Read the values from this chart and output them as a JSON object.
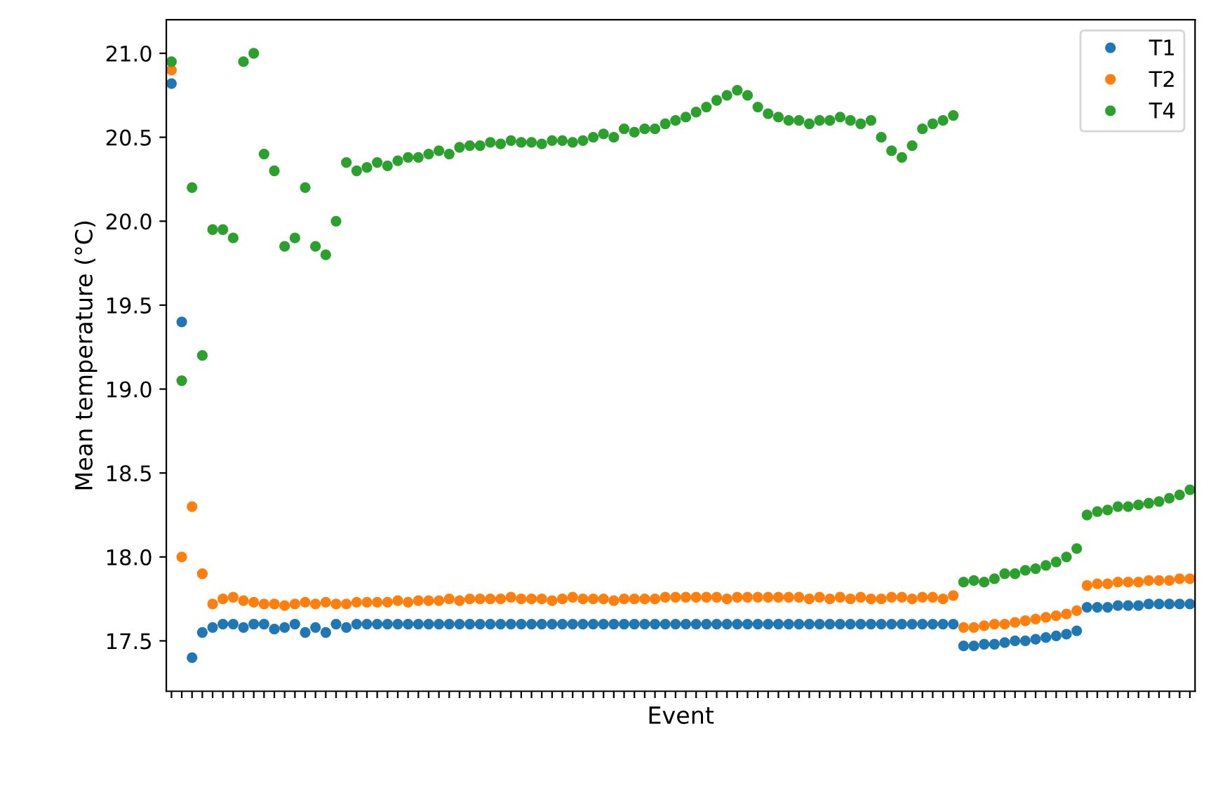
{
  "chart_data": {
    "type": "scatter",
    "xlabel": "Event",
    "ylabel": "Mean temperature (°C)",
    "categories": [
      null,
      null,
      null,
      null,
      null,
      null,
      null,
      null,
      null,
      null,
      null,
      null,
      null,
      null,
      null,
      null,
      null,
      null,
      null,
      null,
      null,
      null,
      null,
      null,
      null,
      null,
      null,
      null,
      null,
      null,
      null,
      null,
      null,
      null,
      null,
      null,
      null,
      null,
      null,
      null,
      null,
      null,
      null,
      null,
      null,
      null,
      null,
      null,
      null,
      null,
      null,
      null,
      null,
      null,
      null,
      null,
      null,
      null,
      null,
      null,
      null,
      null,
      null,
      null,
      null,
      null,
      null,
      null,
      null,
      null,
      null,
      null,
      null,
      null,
      null,
      null,
      null,
      null,
      null,
      null,
      null,
      null,
      null,
      null,
      null,
      null,
      null,
      null,
      null,
      null,
      null,
      null,
      null,
      null,
      null,
      null,
      null,
      null,
      null,
      null
    ],
    "ylim": [
      17.2,
      21.2
    ],
    "yticks": [
      17.5,
      {
        "value": 18,
        "label": "18.0"
      },
      18.5,
      {
        "value": 19,
        "label": "19.0"
      },
      19.5,
      {
        "value": 20,
        "label": "20.0"
      },
      20.5,
      {
        "value": 21,
        "label": "21.0"
      }
    ],
    "tick_labels": "y",
    "legend": "top right",
    "marker": "circle",
    "grid": false,
    "series": [
      {
        "name": "T1",
        "color": "#1f77b4",
        "values": [
          20.82,
          19.4,
          17.4,
          17.55,
          17.58,
          17.6,
          17.6,
          17.58,
          17.6,
          17.6,
          17.57,
          17.58,
          17.6,
          17.55,
          17.58,
          17.55,
          17.6,
          17.58,
          17.6,
          17.6,
          17.6,
          17.6,
          17.6,
          17.6,
          17.6,
          17.6,
          17.6,
          17.6,
          17.6,
          17.6,
          17.6,
          17.6,
          17.6,
          17.6,
          17.6,
          17.6,
          17.6,
          17.6,
          17.6,
          17.6,
          17.6,
          17.6,
          17.6,
          17.6,
          17.6,
          17.6,
          17.6,
          17.6,
          17.6,
          17.6,
          17.6,
          17.6,
          17.6,
          17.6,
          17.6,
          17.6,
          17.6,
          17.6,
          17.6,
          17.6,
          17.6,
          17.6,
          17.6,
          17.6,
          17.6,
          17.6,
          17.6,
          17.6,
          17.6,
          17.6,
          17.6,
          17.6,
          17.6,
          17.6,
          17.6,
          17.6,
          17.6,
          17.47,
          17.47,
          17.48,
          17.48,
          17.49,
          17.5,
          17.5,
          17.51,
          17.52,
          17.53,
          17.54,
          17.56,
          17.7,
          17.7,
          17.7,
          17.71,
          17.71,
          17.71,
          17.72,
          17.72,
          17.72,
          17.72,
          17.72
        ]
      },
      {
        "name": "T2",
        "color": "#ff7f0e",
        "values": [
          20.9,
          18.0,
          18.3,
          17.9,
          17.72,
          17.75,
          17.76,
          17.74,
          17.73,
          17.72,
          17.72,
          17.71,
          17.72,
          17.73,
          17.72,
          17.73,
          17.72,
          17.72,
          17.73,
          17.73,
          17.73,
          17.73,
          17.74,
          17.73,
          17.74,
          17.74,
          17.74,
          17.75,
          17.74,
          17.75,
          17.75,
          17.75,
          17.75,
          17.76,
          17.75,
          17.75,
          17.75,
          17.74,
          17.75,
          17.76,
          17.75,
          17.75,
          17.75,
          17.74,
          17.75,
          17.75,
          17.75,
          17.75,
          17.76,
          17.76,
          17.76,
          17.76,
          17.76,
          17.76,
          17.75,
          17.76,
          17.76,
          17.76,
          17.76,
          17.76,
          17.76,
          17.76,
          17.75,
          17.76,
          17.75,
          17.76,
          17.75,
          17.76,
          17.75,
          17.75,
          17.76,
          17.76,
          17.75,
          17.76,
          17.76,
          17.75,
          17.77,
          17.58,
          17.58,
          17.59,
          17.6,
          17.6,
          17.61,
          17.62,
          17.63,
          17.64,
          17.65,
          17.66,
          17.68,
          17.83,
          17.84,
          17.84,
          17.85,
          17.85,
          17.85,
          17.86,
          17.86,
          17.86,
          17.87,
          17.87
        ]
      },
      {
        "name": "T4",
        "color": "#2ca02c",
        "values": [
          20.95,
          19.05,
          20.2,
          19.2,
          19.95,
          19.95,
          19.9,
          20.95,
          21.0,
          20.4,
          20.3,
          19.85,
          19.9,
          20.2,
          19.85,
          19.8,
          20.0,
          20.35,
          20.3,
          20.32,
          20.35,
          20.33,
          20.36,
          20.38,
          20.38,
          20.4,
          20.42,
          20.4,
          20.44,
          20.45,
          20.45,
          20.47,
          20.46,
          20.48,
          20.47,
          20.47,
          20.46,
          20.48,
          20.48,
          20.47,
          20.48,
          20.5,
          20.52,
          20.5,
          20.55,
          20.53,
          20.55,
          20.55,
          20.58,
          20.6,
          20.62,
          20.65,
          20.68,
          20.72,
          20.75,
          20.78,
          20.75,
          20.68,
          20.64,
          20.62,
          20.6,
          20.6,
          20.58,
          20.6,
          20.6,
          20.62,
          20.6,
          20.58,
          20.6,
          20.5,
          20.42,
          20.38,
          20.45,
          20.55,
          20.58,
          20.6,
          20.63,
          17.85,
          17.86,
          17.85,
          17.87,
          17.9,
          17.9,
          17.92,
          17.93,
          17.95,
          17.97,
          18.0,
          18.05,
          18.25,
          18.27,
          18.28,
          18.3,
          18.3,
          18.31,
          18.32,
          18.33,
          18.35,
          18.37,
          18.4
        ]
      }
    ]
  }
}
